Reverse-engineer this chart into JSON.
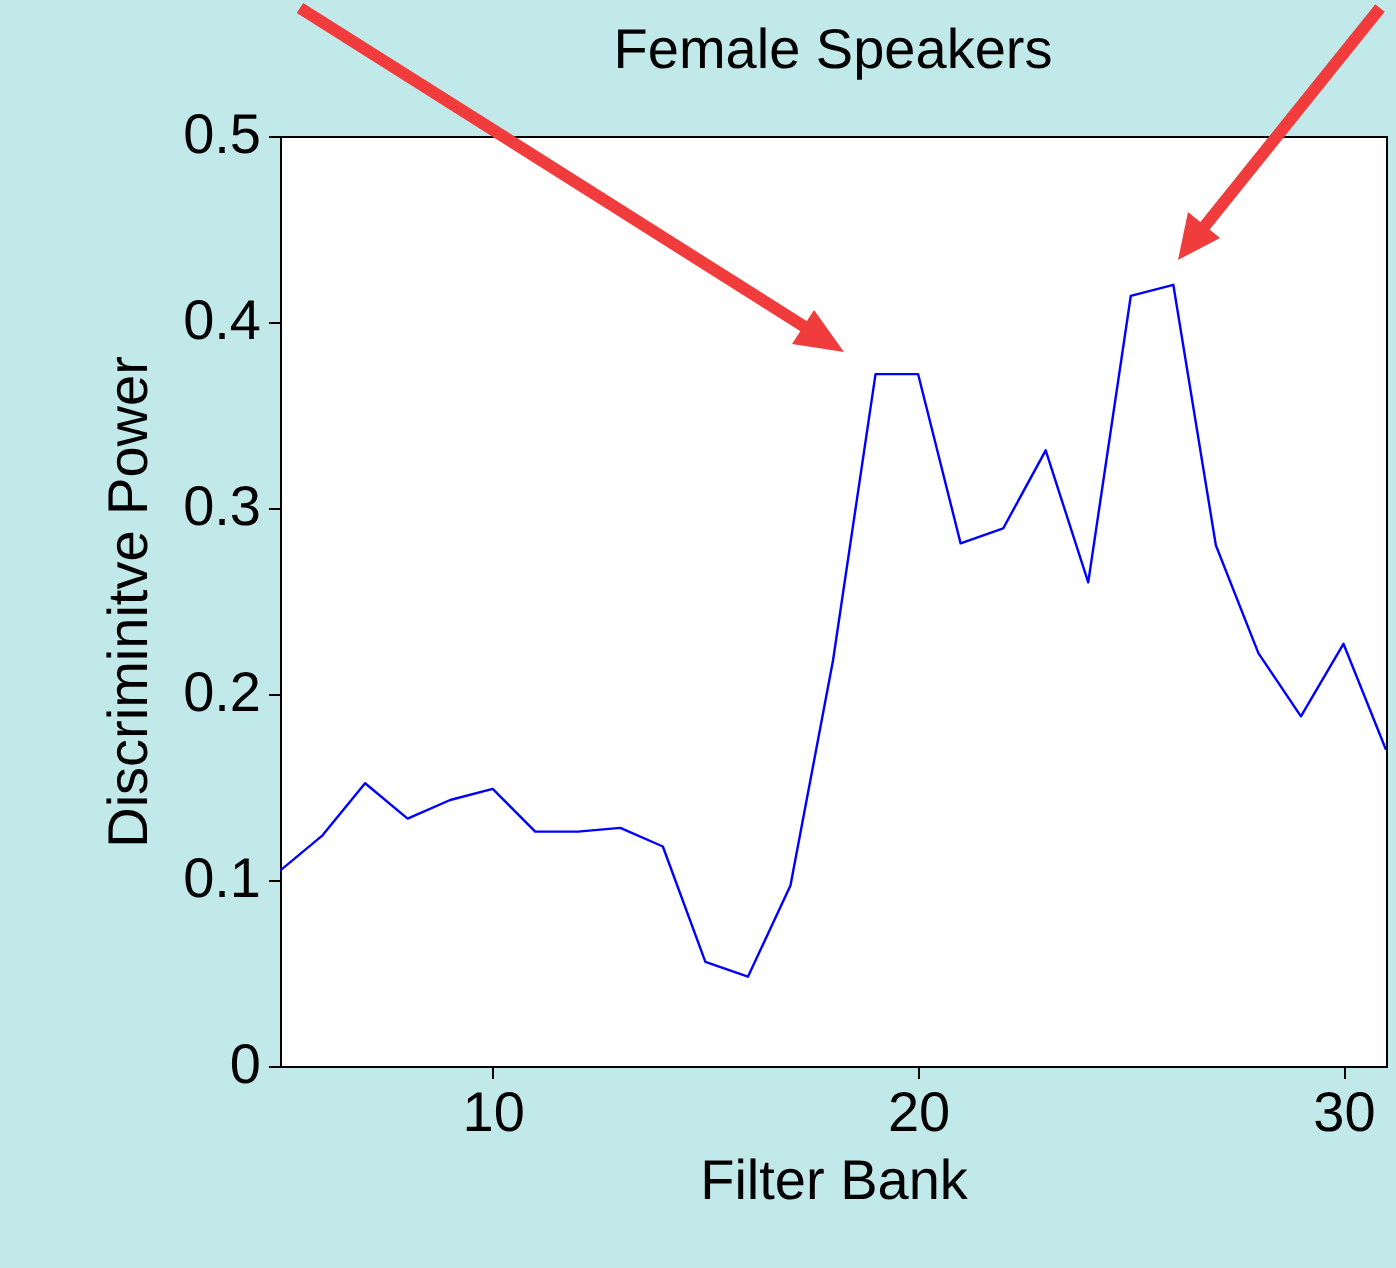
{
  "chart_data": {
    "type": "line",
    "title": "Female Speakers",
    "xlabel": "Filter Bank",
    "ylabel": "Discriminitve Power",
    "x": [
      5,
      6,
      7,
      8,
      9,
      10,
      11,
      12,
      13,
      14,
      15,
      16,
      17,
      18,
      19,
      20,
      21,
      22,
      23,
      24,
      25,
      26,
      27,
      28,
      29,
      30,
      31
    ],
    "series": [
      {
        "color": "#0000ff",
        "values": [
          0.105,
          0.124,
          0.152,
          0.133,
          0.143,
          0.149,
          0.126,
          0.126,
          0.128,
          0.118,
          0.056,
          0.048,
          0.097,
          0.218,
          0.372,
          0.372,
          0.281,
          0.289,
          0.331,
          0.26,
          0.414,
          0.42,
          0.28,
          0.222,
          0.188,
          0.227,
          0.17
        ]
      }
    ],
    "xlim": [
      5,
      31
    ],
    "xticks": [
      10,
      20,
      30
    ],
    "ylim": [
      0,
      0.5
    ],
    "yticks": [
      0,
      0.1,
      0.2,
      0.3,
      0.4,
      0.5
    ],
    "grid": false,
    "marker": "none",
    "line_style": "solid"
  }
}
